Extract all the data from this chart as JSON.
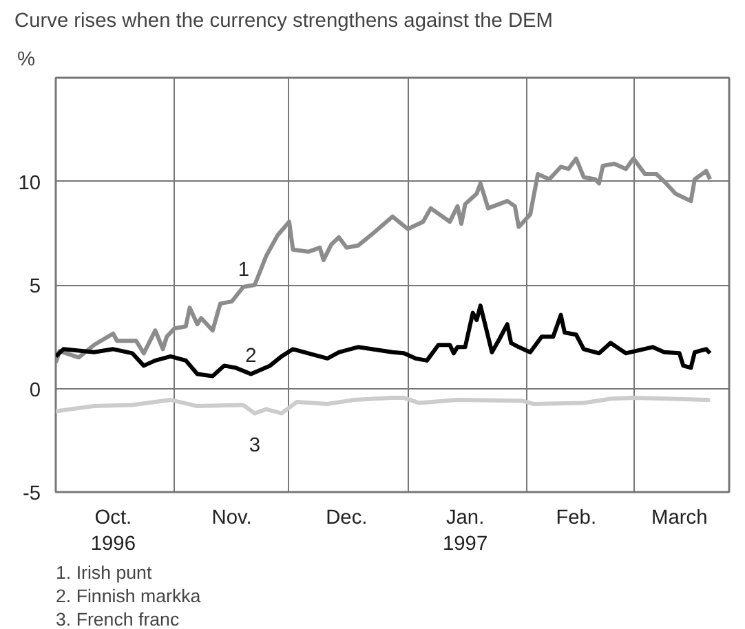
{
  "chart_data": {
    "type": "line",
    "title": "Curve rises when the currency strengthens against the DEM",
    "ylabel": "%",
    "xlim": [
      "1996-10-01",
      "1997-03-26"
    ],
    "ylim": [
      -5,
      15
    ],
    "xticks": [
      {
        "value": "1996-10-16",
        "label": "Oct.\n1996"
      },
      {
        "value": "1996-11-01",
        "label": null
      },
      {
        "value": "1996-11-16",
        "label": "Nov."
      },
      {
        "value": "1996-12-01",
        "label": null
      },
      {
        "value": "1996-12-16",
        "label": "Dec."
      },
      {
        "value": "1997-01-01",
        "label": null
      },
      {
        "value": "1997-01-16",
        "label": "Jan.\n1997"
      },
      {
        "value": "1997-02-01",
        "label": null
      },
      {
        "value": "1997-02-14",
        "label": "Feb."
      },
      {
        "value": "1997-03-01",
        "label": null
      },
      {
        "value": "1997-03-13",
        "label": "March"
      }
    ],
    "yticks": [
      -5,
      0,
      5,
      10,
      {
        "value": 15,
        "label": null
      }
    ],
    "grid": true,
    "line_style": "solid",
    "series": [
      {
        "name": "1",
        "color": "#8c8c8c",
        "x": [
          "1996-10-01",
          "1996-10-02",
          "1996-10-07",
          "1996-10-11",
          "1996-10-16",
          "1996-10-17",
          "1996-10-22",
          "1996-10-24",
          "1996-10-27",
          "1996-10-29",
          "1996-10-30",
          "1996-11-01",
          "1996-11-04",
          "1996-11-05",
          "1996-11-07",
          "1996-11-08",
          "1996-11-11",
          "1996-11-13",
          "1996-11-16",
          "1996-11-19",
          "1996-11-22",
          "1996-11-25",
          "1996-11-28",
          "1996-12-01",
          "1996-12-02",
          "1996-12-06",
          "1996-12-09",
          "1996-12-10",
          "1996-12-12",
          "1996-12-14",
          "1996-12-16",
          "1996-12-19",
          "1996-12-23",
          "1996-12-28",
          "1997-01-01",
          "1997-01-05",
          "1997-01-07",
          "1997-01-12",
          "1997-01-14",
          "1997-01-15",
          "1997-01-16",
          "1997-01-19",
          "1997-01-20",
          "1997-01-22",
          "1997-01-27",
          "1997-01-29",
          "1997-01-30",
          "1997-02-02",
          "1997-02-04",
          "1997-02-07",
          "1997-02-10",
          "1997-02-12",
          "1997-02-14",
          "1997-02-16",
          "1997-02-19",
          "1997-02-20",
          "1997-02-21",
          "1997-02-24",
          "1997-02-27",
          "1997-03-01",
          "1997-03-04",
          "1997-03-07",
          "1997-03-09",
          "1997-03-12",
          "1997-03-16",
          "1997-03-17",
          "1997-03-20",
          "1997-03-21"
        ],
        "values": [
          1.25,
          1.8,
          1.5,
          2.1,
          2.65,
          2.3,
          2.3,
          1.7,
          2.8,
          1.9,
          2.5,
          2.9,
          3.0,
          3.9,
          3.1,
          3.4,
          2.8,
          4.1,
          4.2,
          4.9,
          5.0,
          6.4,
          7.4,
          8.05,
          6.7,
          6.6,
          6.8,
          6.2,
          6.95,
          7.3,
          6.8,
          6.9,
          7.5,
          8.3,
          7.7,
          8.05,
          8.7,
          8.05,
          8.8,
          7.95,
          8.9,
          9.4,
          9.9,
          8.7,
          9.05,
          8.8,
          7.8,
          8.4,
          10.35,
          10.1,
          10.7,
          10.6,
          11.1,
          10.2,
          10.1,
          9.9,
          10.75,
          10.85,
          10.6,
          11.1,
          10.35,
          10.35,
          10.0,
          9.4,
          9.05,
          10.1,
          10.5,
          10.1
        ]
      },
      {
        "name": "2",
        "color": "#000000",
        "x": [
          "1996-10-01",
          "1996-10-03",
          "1996-10-11",
          "1996-10-16",
          "1996-10-21",
          "1996-10-24",
          "1996-10-27",
          "1996-10-31",
          "1996-11-04",
          "1996-11-07",
          "1996-11-11",
          "1996-11-14",
          "1996-11-17",
          "1996-11-21",
          "1996-11-26",
          "1996-11-29",
          "1996-12-02",
          "1996-12-06",
          "1996-12-11",
          "1996-12-14",
          "1996-12-19",
          "1996-12-28",
          "1996-12-31",
          "1997-01-03",
          "1997-01-06",
          "1997-01-09",
          "1997-01-12",
          "1997-01-13",
          "1997-01-14",
          "1997-01-16",
          "1997-01-18",
          "1997-01-19",
          "1997-01-20",
          "1997-01-23",
          "1997-01-25",
          "1997-01-27",
          "1997-01-28",
          "1997-01-30",
          "1997-02-02",
          "1997-02-05",
          "1997-02-08",
          "1997-02-10",
          "1997-02-11",
          "1997-02-14",
          "1997-02-16",
          "1997-02-20",
          "1997-02-23",
          "1997-02-27",
          "1997-03-06",
          "1997-03-09",
          "1997-03-13",
          "1997-03-14",
          "1997-03-16",
          "1997-03-17",
          "1997-03-20",
          "1997-03-21"
        ],
        "values": [
          1.55,
          1.9,
          1.75,
          1.9,
          1.7,
          1.1,
          1.35,
          1.55,
          1.35,
          0.7,
          0.6,
          1.1,
          1.0,
          0.7,
          1.1,
          1.55,
          1.9,
          1.7,
          1.45,
          1.75,
          2.0,
          1.75,
          1.7,
          1.45,
          1.35,
          2.1,
          2.1,
          1.7,
          2.0,
          2.0,
          3.65,
          3.3,
          4.0,
          1.75,
          2.4,
          3.1,
          2.2,
          2.0,
          1.75,
          2.5,
          2.5,
          3.55,
          2.7,
          2.6,
          1.9,
          1.7,
          2.2,
          1.7,
          2.0,
          1.75,
          1.7,
          1.1,
          1.0,
          1.75,
          1.9,
          1.7
        ]
      },
      {
        "name": "3",
        "color": "#cccccc",
        "x": [
          "1996-10-01",
          "1996-10-11",
          "1996-10-21",
          "1996-10-31",
          "1996-11-07",
          "1996-11-19",
          "1996-11-22",
          "1996-11-25",
          "1996-11-29",
          "1996-12-03",
          "1996-12-11",
          "1996-12-18",
          "1996-12-28",
          "1996-12-31",
          "1997-01-04",
          "1997-01-14",
          "1997-01-31",
          "1997-02-03",
          "1997-02-16",
          "1997-02-23",
          "1997-03-01",
          "1997-03-21"
        ],
        "values": [
          -1.1,
          -0.85,
          -0.8,
          -0.55,
          -0.85,
          -0.8,
          -1.2,
          -1.0,
          -1.2,
          -0.65,
          -0.75,
          -0.55,
          -0.45,
          -0.45,
          -0.7,
          -0.55,
          -0.6,
          -0.75,
          -0.7,
          -0.5,
          -0.45,
          -0.55
        ]
      }
    ],
    "annotations": [
      "1. Irish punt",
      "2. Finnish markka",
      "3. French franc"
    ]
  }
}
